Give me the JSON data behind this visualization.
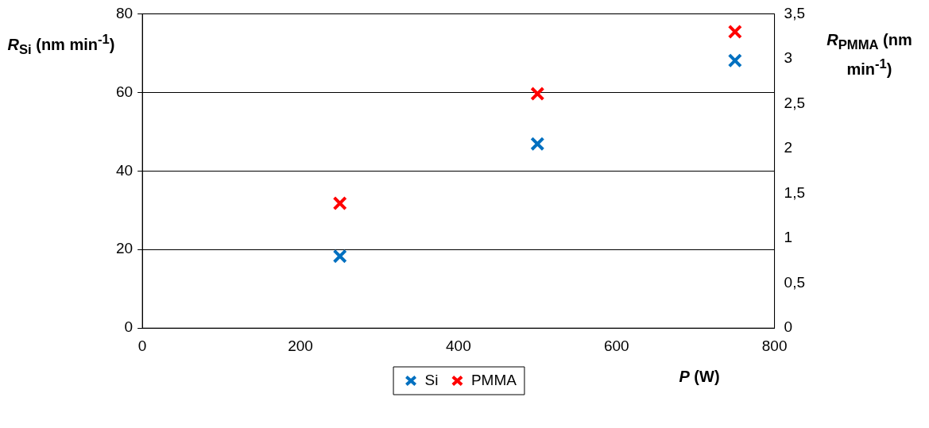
{
  "chart_data": {
    "type": "scatter",
    "xlabel": "P (W)",
    "ylabel": "R$_{Si}$ (nm min$^{-1}$)",
    "y2label": "R$_{PMMA}$ (nm min$^{-1}$)",
    "series": [
      {
        "name": "Si",
        "color": "#0070c0",
        "x": [
          250,
          500,
          750
        ],
        "values": [
          18.3,
          46.9,
          68.1
        ]
      },
      {
        "name": "PMMA",
        "color": "#ff0000",
        "x": [
          250,
          500,
          750
        ],
        "values": [
          1.39,
          2.61,
          3.3
        ],
        "axis": "y2"
      }
    ],
    "xlim": [
      0,
      800
    ],
    "xticks": [
      0,
      200,
      400,
      600,
      800
    ],
    "ylim": [
      0,
      80
    ],
    "yticks": [
      0,
      20,
      40,
      60,
      80
    ],
    "y2lim": [
      0,
      3.5
    ],
    "y2ticks": [
      0,
      {
        "value": 0.5,
        "label": "0,5"
      },
      1,
      {
        "value": 1.5,
        "label": "1,5"
      },
      2,
      {
        "value": 2.5,
        "label": "2,5"
      },
      3,
      {
        "value": 3.5,
        "label": "3,5"
      }
    ],
    "grid": "y",
    "legend": "bottom",
    "marker": "cross"
  }
}
